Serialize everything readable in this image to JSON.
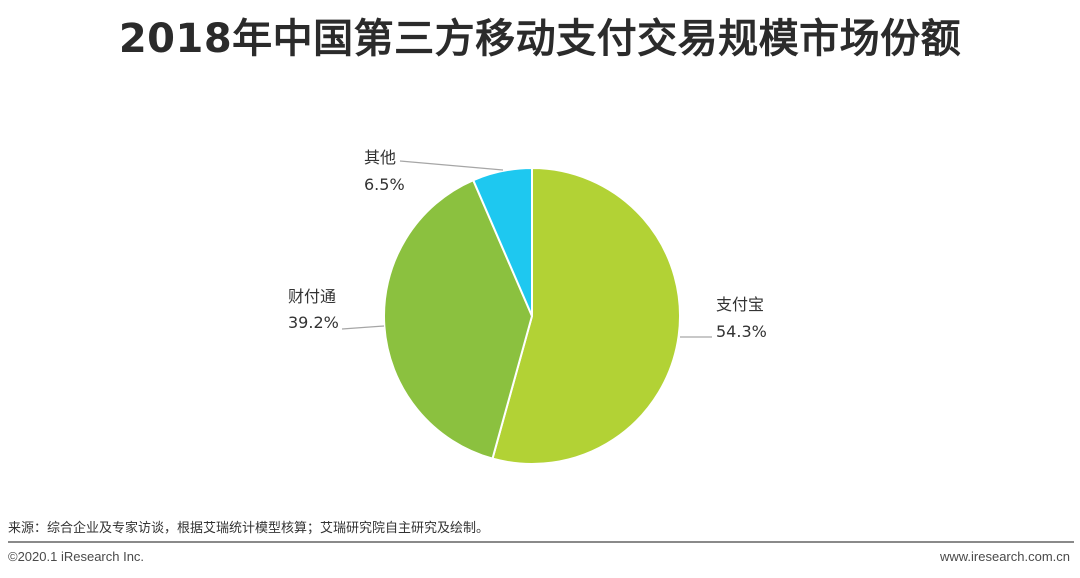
{
  "chart_data": {
    "type": "pie",
    "title": "2018年中国第三方移动支付交易规模市场份额",
    "slices": [
      {
        "label": "支付宝",
        "value": 54.3,
        "value_label": "54.3%",
        "color": "#b2d235"
      },
      {
        "label": "财付通",
        "value": 39.2,
        "value_label": "39.2%",
        "color": "#8bc13f"
      },
      {
        "label": "其他",
        "value": 6.5,
        "value_label": "6.5%",
        "color": "#1ec8f0"
      }
    ],
    "start_angle_deg": 0,
    "direction": "clockwise",
    "legend": "none"
  },
  "footer": {
    "source": "来源：综合企业及专家访谈，根据艾瑞统计模型核算；艾瑞研究院自主研究及绘制。",
    "copyright": "©2020.1 iResearch Inc.",
    "website": "www.iresearch.com.cn"
  }
}
